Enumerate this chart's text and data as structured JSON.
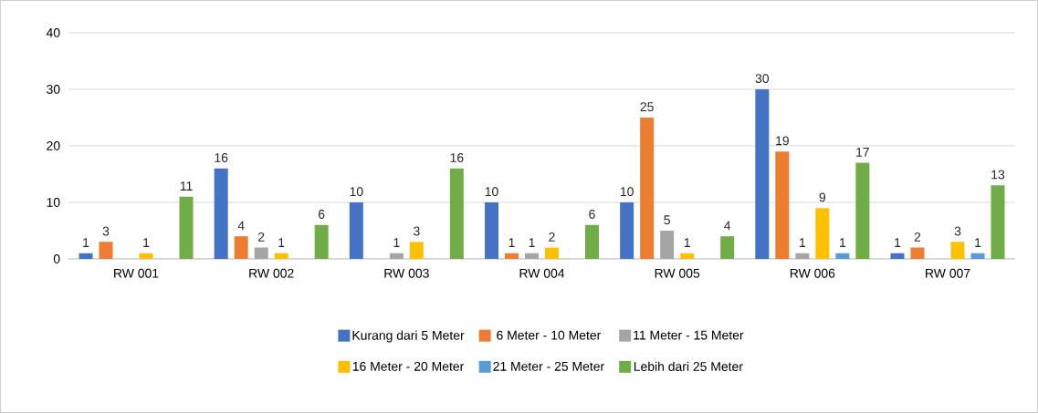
{
  "chart_data": {
    "type": "bar",
    "categories": [
      "RW 001",
      "RW 002",
      "RW 003",
      "RW 004",
      "RW 005",
      "RW 006",
      "RW 007"
    ],
    "series": [
      {
        "name": "Kurang dari 5 Meter",
        "color": "#4472c4",
        "values": [
          1,
          16,
          10,
          10,
          10,
          30,
          1
        ]
      },
      {
        "name": "6 Meter - 10 Meter",
        "color": "#ed7d31",
        "values": [
          3,
          4,
          null,
          1,
          25,
          19,
          2
        ]
      },
      {
        "name": "11 Meter - 15 Meter",
        "color": "#a5a5a5",
        "values": [
          null,
          2,
          1,
          1,
          5,
          1,
          null
        ]
      },
      {
        "name": "16 Meter - 20 Meter",
        "color": "#ffc000",
        "values": [
          1,
          1,
          3,
          2,
          1,
          9,
          3
        ]
      },
      {
        "name": "21 Meter - 25 Meter",
        "color": "#5b9bd5",
        "values": [
          null,
          null,
          null,
          null,
          null,
          1,
          1
        ]
      },
      {
        "name": "Lebih dari 25 Meter",
        "color": "#70ad47",
        "values": [
          11,
          6,
          16,
          6,
          4,
          17,
          13
        ]
      }
    ],
    "ylim": [
      0,
      40
    ],
    "yticks": [
      0,
      10,
      20,
      30,
      40
    ],
    "grid": "y",
    "legend": "bottom",
    "data_labels": true
  }
}
